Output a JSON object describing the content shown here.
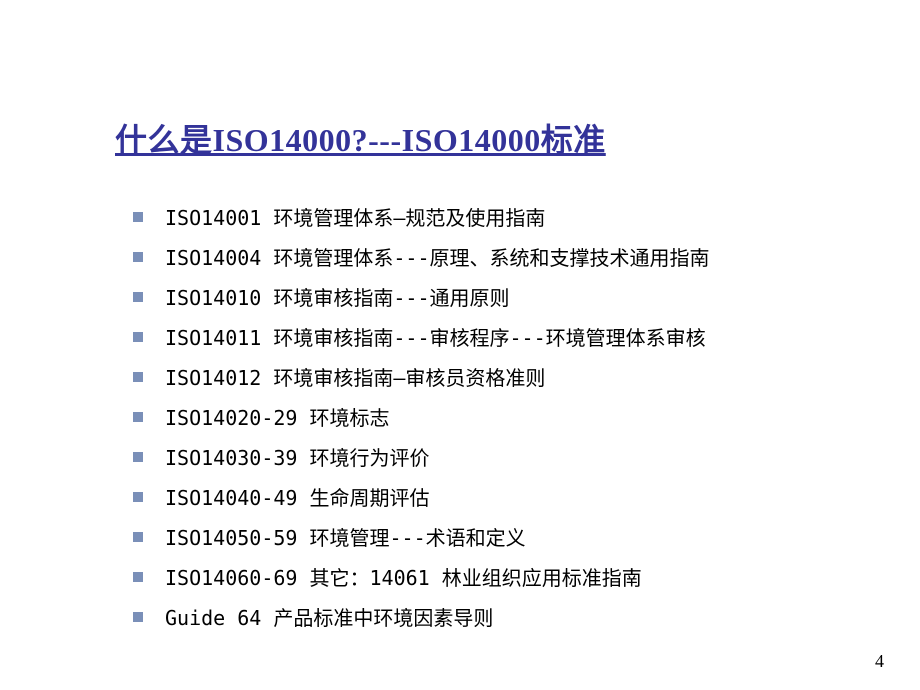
{
  "slide": {
    "title": "什么是ISO14000?---ISO14000标准",
    "title_color": "#333399",
    "title_fontsize": 32,
    "bullet_color": "#7a8fb8",
    "background_color": "#ffffff",
    "text_color": "#000000",
    "item_fontsize": 20,
    "items": [
      "ISO14001 环境管理体系—规范及使用指南",
      "ISO14004 环境管理体系---原理、系统和支撑技术通用指南",
      "ISO14010 环境审核指南---通用原则",
      "ISO14011 环境审核指南---审核程序---环境管理体系审核",
      "ISO14012 环境审核指南—审核员资格准则",
      "ISO14020-29  环境标志",
      "ISO14030-39  环境行为评价",
      "ISO14040-49  生命周期评估",
      "ISO14050-59  环境管理---术语和定义",
      "ISO14060-69  其它：14061 林业组织应用标准指南",
      "Guide 64     产品标准中环境因素导则"
    ],
    "page_number": "4"
  }
}
